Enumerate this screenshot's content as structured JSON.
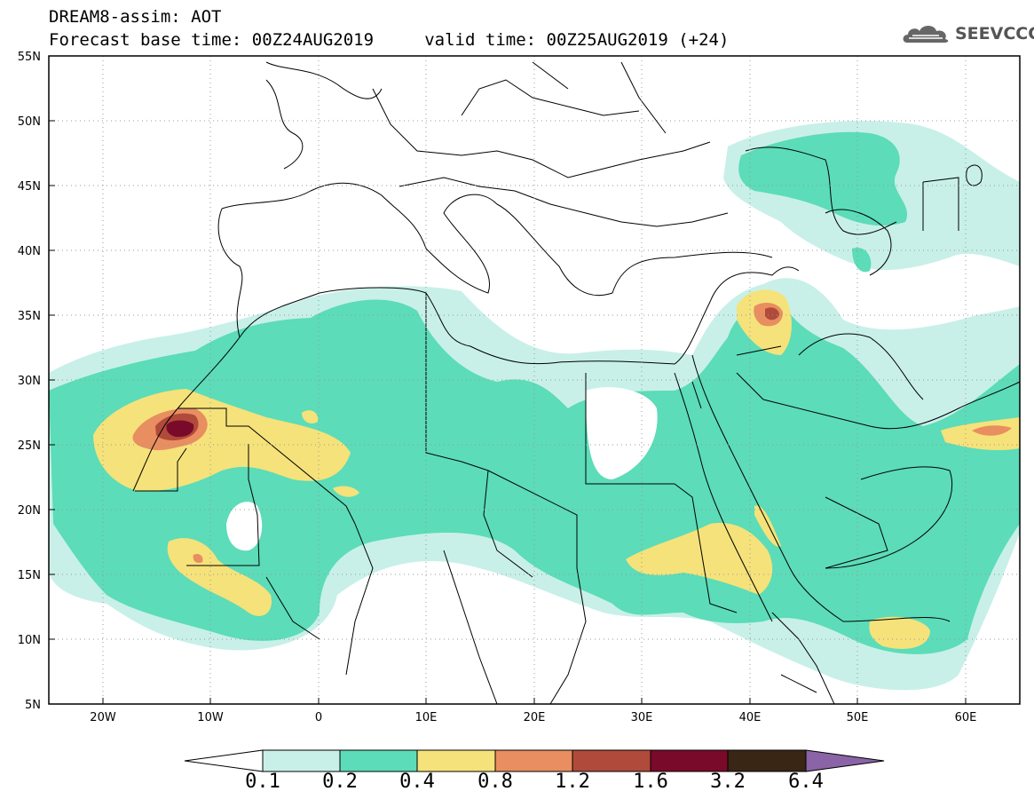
{
  "header": {
    "title": "DREAM8-assim: AOT",
    "subtitle": "Forecast base time: 00Z24AUG2019     valid time: 00Z25AUG2019 (+24)",
    "logo_text": "SEEVCCC",
    "logo_icon": "cloud-icon"
  },
  "map": {
    "variable": "AOT",
    "lon_range": [
      -25,
      65
    ],
    "lat_range": [
      5,
      55
    ],
    "lat_ticks": [
      "55N",
      "50N",
      "45N",
      "40N",
      "35N",
      "30N",
      "25N",
      "20N",
      "15N",
      "10N",
      "5N"
    ],
    "lon_ticks": [
      "20W",
      "10W",
      "0",
      "10E",
      "20E",
      "30E",
      "40E",
      "50E",
      "60E"
    ],
    "gridlines": "dotted"
  },
  "colorbar": {
    "labels": [
      "0.1",
      "0.2",
      "0.4",
      "0.8",
      "1.2",
      "1.6",
      "3.2",
      "6.4"
    ],
    "colors": [
      "#ffffff",
      "#c8f0e8",
      "#5cdcb8",
      "#f5e27a",
      "#e88e60",
      "#b04a3a",
      "#7a0a2a",
      "#3a2614",
      "#8a64a6"
    ]
  }
}
